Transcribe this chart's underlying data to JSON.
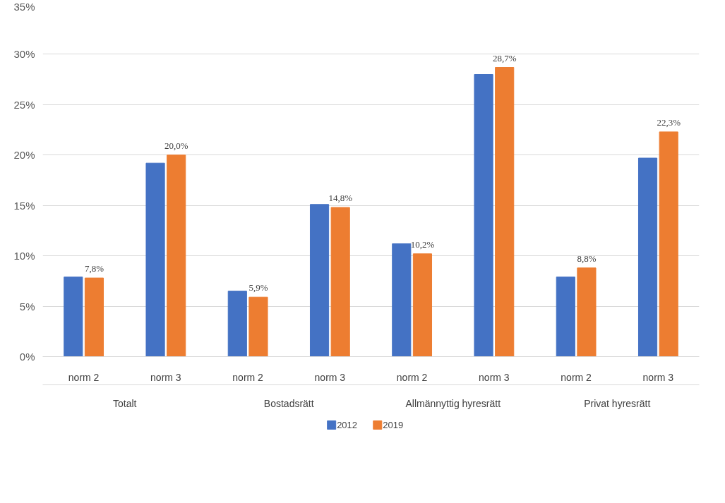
{
  "chart_data": {
    "type": "bar",
    "categories": [
      "norm 2",
      "norm 3",
      "norm 2",
      "norm 3",
      "norm 2",
      "norm 3",
      "norm 2",
      "norm 3"
    ],
    "annotations": [
      "Totalt",
      "Bostadsrätt",
      "Allmännyttig hyresrätt",
      "Privat hyresrätt"
    ],
    "series": [
      {
        "name": "2012",
        "color": "#4472c4",
        "values": [
          7.9,
          19.2,
          6.5,
          15.1,
          11.2,
          28.0,
          7.9,
          19.7
        ]
      },
      {
        "name": "2019",
        "color": "#ed7d31",
        "values": [
          7.8,
          20.0,
          5.9,
          14.8,
          10.2,
          28.7,
          8.8,
          22.3
        ],
        "value_labels": [
          "7,8%",
          "20,0%",
          "5,9%",
          "14,8%",
          "10,2%",
          "28,7%",
          "8,8%",
          "22,3%"
        ]
      }
    ],
    "ylim": [
      0,
      35
    ],
    "yticks": [
      {
        "value": 0,
        "label": "0%"
      },
      {
        "value": 5,
        "label": "5%"
      },
      {
        "value": 10,
        "label": "10%"
      },
      {
        "value": 15,
        "label": "15%"
      },
      {
        "value": 20,
        "label": "20%"
      },
      {
        "value": 25,
        "label": "25%"
      },
      {
        "value": 30,
        "label": "30%"
      },
      {
        "value": 35,
        "label": "35%"
      }
    ],
    "grid": "y",
    "legend": "bottom"
  }
}
